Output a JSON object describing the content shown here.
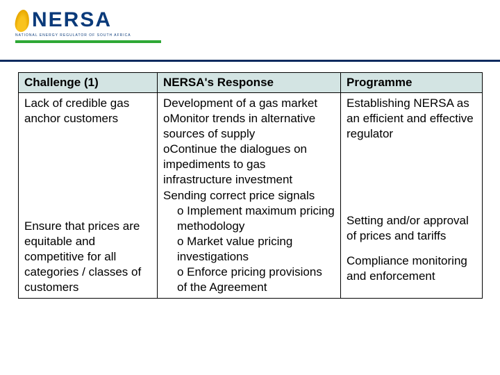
{
  "logo": {
    "name": "NERSA",
    "subtitle": "NATIONAL ENERGY REGULATOR OF SOUTH AFRICA",
    "brand_blue": "#0a3a7a",
    "brand_green": "#2ea836",
    "brand_yellow": "#f9c31f"
  },
  "table": {
    "headers": {
      "col1": "Challenge (1)",
      "col2": "NERSA's Response",
      "col3": "Programme"
    },
    "rows": [
      {
        "challenge": "Lack of credible gas anchor customers",
        "response_lead": "Development of a gas market",
        "response_bullets": [
          "oMonitor trends in alternative sources of supply",
          "oContinue the dialogues on impediments to gas infrastructure investment"
        ],
        "programme": "Establishing NERSA as an efficient and effective regulator"
      },
      {
        "challenge": "Ensure that prices are equitable and competitive for all categories / classes of customers",
        "response_lead": "Sending correct price signals",
        "response_bullets": [
          "o  Implement maximum pricing methodology",
          "o  Market value pricing investigations",
          "o  Enforce pricing provisions of the Agreement"
        ],
        "programme_a": "Setting and/or approval of prices and tariffs",
        "programme_b": "Compliance monitoring and enforcement"
      }
    ],
    "header_bg": "#d3e4e3",
    "border_color": "#000000",
    "fontsize": 17
  },
  "rule_color": "#0a2a5e"
}
